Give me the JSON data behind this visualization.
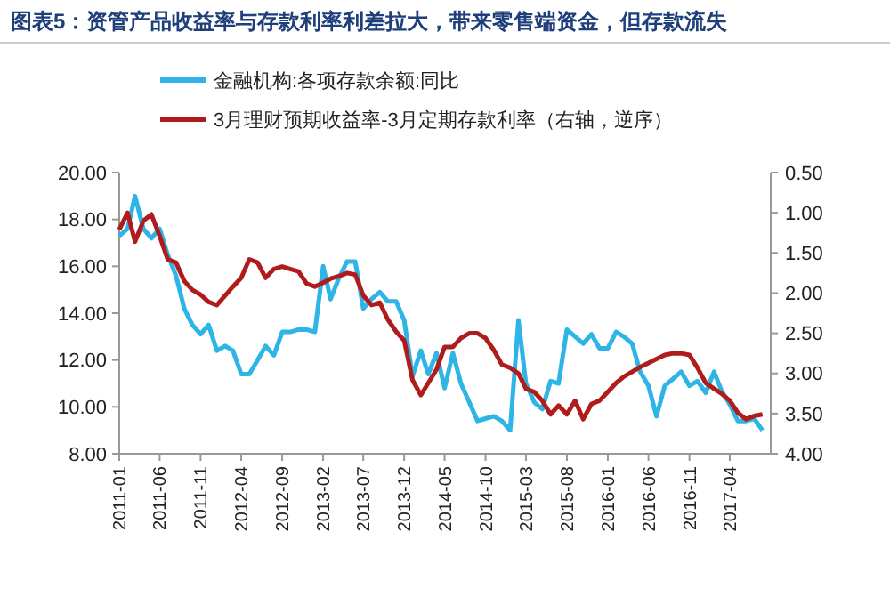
{
  "chart_data": {
    "type": "line",
    "title": "图表5：资管产品收益率与存款利率利差拉大，带来零售端资金，但存款流失",
    "x": [
      "2011-01",
      "2011-02",
      "2011-03",
      "2011-04",
      "2011-05",
      "2011-06",
      "2011-07",
      "2011-08",
      "2011-09",
      "2011-10",
      "2011-11",
      "2011-12",
      "2012-01",
      "2012-02",
      "2012-03",
      "2012-04",
      "2012-05",
      "2012-06",
      "2012-07",
      "2012-08",
      "2012-09",
      "2012-10",
      "2012-11",
      "2012-12",
      "2013-01",
      "2013-02",
      "2013-03",
      "2013-04",
      "2013-05",
      "2013-06",
      "2013-07",
      "2013-08",
      "2013-09",
      "2013-10",
      "2013-11",
      "2013-12",
      "2014-01",
      "2014-02",
      "2014-03",
      "2014-04",
      "2014-05",
      "2014-06",
      "2014-07",
      "2014-08",
      "2014-09",
      "2014-10",
      "2014-11",
      "2014-12",
      "2015-01",
      "2015-02",
      "2015-03",
      "2015-04",
      "2015-05",
      "2015-06",
      "2015-07",
      "2015-08",
      "2015-09",
      "2015-10",
      "2015-11",
      "2015-12",
      "2016-01",
      "2016-02",
      "2016-03",
      "2016-04",
      "2016-05",
      "2016-06",
      "2016-07",
      "2016-08",
      "2016-09",
      "2016-10",
      "2016-11",
      "2016-12",
      "2017-01",
      "2017-02",
      "2017-03",
      "2017-04",
      "2017-05",
      "2017-06",
      "2017-07",
      "2017-08"
    ],
    "series": [
      {
        "name": "金融机构:各项存款余额:同比",
        "color": "#2eb4e6",
        "values": [
          17.3,
          17.6,
          19.0,
          17.6,
          17.2,
          17.6,
          16.5,
          15.6,
          14.2,
          13.5,
          13.1,
          13.5,
          12.4,
          12.6,
          12.4,
          11.4,
          11.4,
          12.0,
          12.6,
          12.2,
          13.2,
          13.2,
          13.3,
          13.3,
          13.2,
          16.0,
          14.6,
          15.5,
          16.2,
          16.2,
          14.2,
          14.6,
          14.9,
          14.5,
          14.5,
          13.7,
          11.3,
          12.4,
          11.4,
          12.3,
          10.8,
          12.3,
          11.0,
          10.2,
          9.4,
          9.5,
          9.6,
          9.4,
          9.0,
          13.7,
          11.0,
          10.2,
          9.9,
          11.1,
          11.0,
          13.3,
          13.0,
          12.7,
          13.1,
          12.5,
          12.5,
          13.2,
          13.0,
          12.7,
          11.5,
          10.9,
          9.6,
          10.9,
          11.2,
          11.5,
          10.9,
          11.1,
          10.6,
          11.5,
          10.7,
          10.1,
          9.4,
          9.4,
          9.5,
          9.0
        ]
      },
      {
        "name": "3月理财预期收益率-3月定期存款利率（右轴，逆序）",
        "color": "#b01c1c",
        "axis": "y2",
        "values": [
          1.21,
          1.0,
          1.36,
          1.1,
          1.02,
          1.29,
          1.58,
          1.62,
          1.85,
          1.96,
          2.02,
          2.11,
          2.15,
          2.03,
          1.92,
          1.81,
          1.58,
          1.62,
          1.81,
          1.7,
          1.67,
          1.7,
          1.73,
          1.88,
          1.92,
          1.87,
          1.82,
          1.79,
          1.75,
          1.77,
          2.03,
          2.15,
          2.12,
          2.33,
          2.48,
          2.59,
          3.08,
          3.27,
          3.12,
          2.95,
          2.67,
          2.67,
          2.56,
          2.5,
          2.5,
          2.56,
          2.71,
          2.89,
          2.93,
          3.0,
          3.19,
          3.23,
          3.34,
          3.51,
          3.4,
          3.51,
          3.34,
          3.57,
          3.38,
          3.34,
          3.23,
          3.12,
          3.04,
          2.98,
          2.92,
          2.87,
          2.82,
          2.77,
          2.75,
          2.75,
          2.77,
          2.93,
          3.12,
          3.19,
          3.25,
          3.34,
          3.49,
          3.57,
          3.53,
          3.51
        ]
      }
    ],
    "xlim": [
      "2011-01",
      "2017-09"
    ],
    "xticks": [
      "2011-01",
      "2011-06",
      "2011-11",
      "2012-04",
      "2012-09",
      "2013-02",
      "2013-07",
      "2013-12",
      "2014-05",
      "2014-10",
      "2015-03",
      "2015-08",
      "2016-01",
      "2016-06",
      "2016-11",
      "2017-04"
    ],
    "ylim": [
      8,
      20
    ],
    "yticks": [
      {
        "value": 8,
        "label": "8.00"
      },
      {
        "value": 10,
        "label": "10.00"
      },
      {
        "value": 12,
        "label": "12.00"
      },
      {
        "value": 14,
        "label": "14.00"
      },
      {
        "value": 16,
        "label": "16.00"
      },
      {
        "value": 18,
        "label": "18.00"
      },
      {
        "value": 20,
        "label": "20.00"
      }
    ],
    "y2lim": [
      4,
      0.5
    ],
    "y2ticks": [
      {
        "value": 0.5,
        "label": "0.50"
      },
      {
        "value": 1,
        "label": "1.00"
      },
      {
        "value": 1.5,
        "label": "1.50"
      },
      {
        "value": 2,
        "label": "2.00"
      },
      {
        "value": 2.5,
        "label": "2.50"
      },
      {
        "value": 3,
        "label": "3.00"
      },
      {
        "value": 3.5,
        "label": "3.50"
      },
      {
        "value": 4,
        "label": "4.00"
      }
    ],
    "legend": "top",
    "grid": false,
    "marker": "none",
    "line_style": "solid"
  }
}
